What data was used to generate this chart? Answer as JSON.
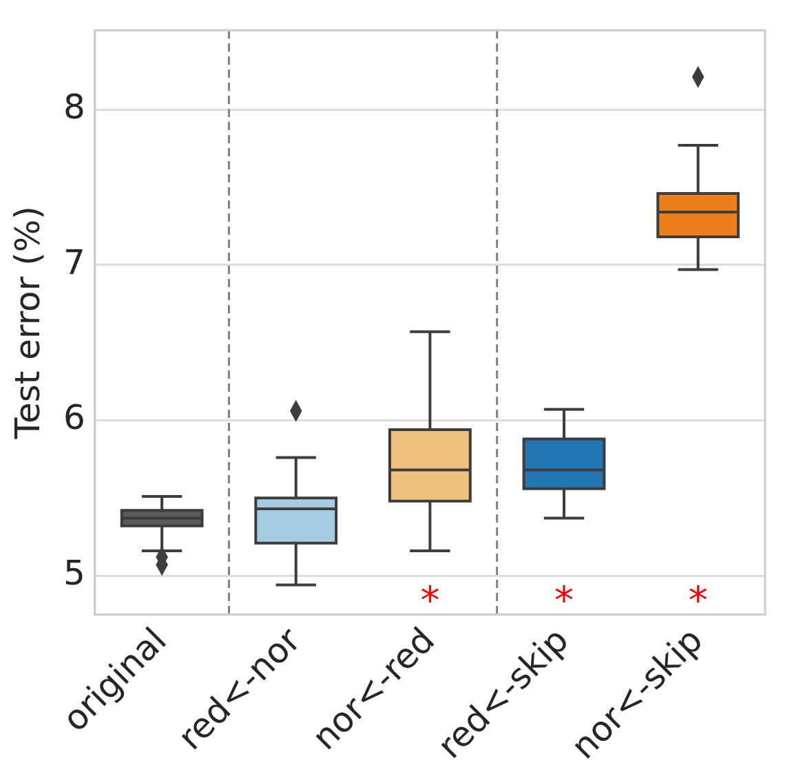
{
  "chart_data": {
    "type": "box",
    "ylabel": "Test error (%)",
    "categories": [
      "original",
      "red<-nor",
      "nor<-red",
      "red<-skip",
      "nor<-skip"
    ],
    "colors": [
      "#5a5a5a",
      "#a6cbe3",
      "#f0c07e",
      "#2376b4",
      "#ec7f1c"
    ],
    "boxes": [
      {
        "low": 5.16,
        "q1": 5.32,
        "median": 5.37,
        "q3": 5.42,
        "high": 5.51,
        "outliers": [
          5.12,
          5.07
        ]
      },
      {
        "low": 4.94,
        "q1": 5.21,
        "median": 5.43,
        "q3": 5.5,
        "high": 5.76,
        "outliers": [
          6.06
        ]
      },
      {
        "low": 5.16,
        "q1": 5.48,
        "median": 5.68,
        "q3": 5.94,
        "high": 6.57
      },
      {
        "low": 5.37,
        "q1": 5.56,
        "median": 5.68,
        "q3": 5.88,
        "high": 6.07
      },
      {
        "low": 6.97,
        "q1": 7.18,
        "median": 7.34,
        "q3": 7.46,
        "high": 7.77,
        "outliers": [
          8.21
        ]
      }
    ],
    "ylim": [
      4.75,
      8.51
    ],
    "yticks": [
      5,
      6,
      7,
      8
    ],
    "grid": "y",
    "annotations": [
      "*",
      "*",
      "*"
    ]
  }
}
